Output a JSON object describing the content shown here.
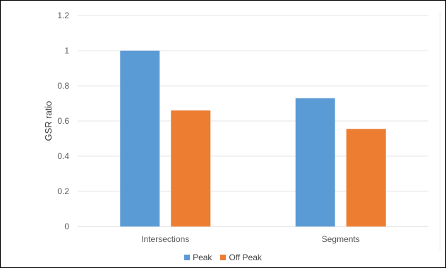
{
  "chart_data": {
    "type": "bar",
    "categories": [
      "Intersections",
      "Segments"
    ],
    "series": [
      {
        "name": "Peak",
        "values": [
          1.0,
          0.73
        ],
        "color": "#5b9bd5"
      },
      {
        "name": "Off Peak",
        "values": [
          0.66,
          0.555
        ],
        "color": "#ed7d31"
      }
    ],
    "title": "",
    "xlabel": "",
    "ylabel": "GSR ratio",
    "ylim": [
      0,
      1.2
    ],
    "yticks": [
      "0",
      "0.2",
      "0.4",
      "0.6",
      "0.8",
      "1",
      "1.2"
    ],
    "grid": true,
    "legend_position": "bottom"
  }
}
